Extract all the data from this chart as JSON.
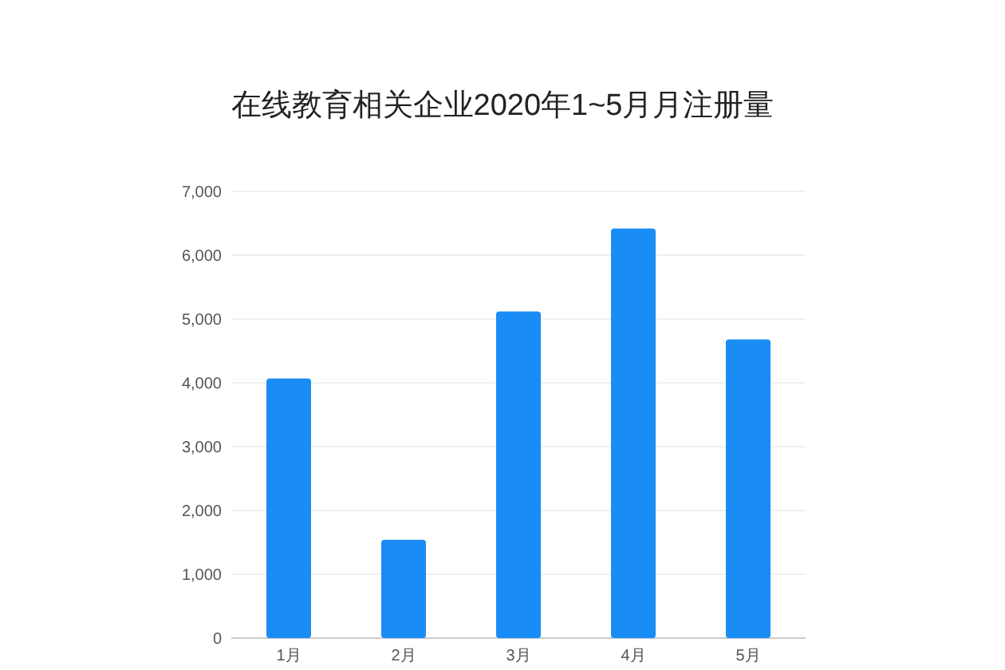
{
  "chart_data": {
    "type": "bar",
    "title": "在线教育相关企业2020年1~5月月注册量",
    "categories": [
      "1月",
      "2月",
      "3月",
      "4月",
      "5月"
    ],
    "values": [
      4070,
      1540,
      5120,
      6420,
      4680
    ],
    "color": "#1a8cf5",
    "ylim": [
      0,
      7000
    ],
    "yticks": [
      {
        "value": 0,
        "label": "0"
      },
      {
        "value": 1000,
        "label": "1,000"
      },
      {
        "value": 2000,
        "label": "2,000"
      },
      {
        "value": 3000,
        "label": "3,000"
      },
      {
        "value": 4000,
        "label": "4,000"
      },
      {
        "value": 5000,
        "label": "5,000"
      },
      {
        "value": 6000,
        "label": "6,000"
      },
      {
        "value": 7000,
        "label": "7,000"
      }
    ],
    "grid": "y"
  }
}
